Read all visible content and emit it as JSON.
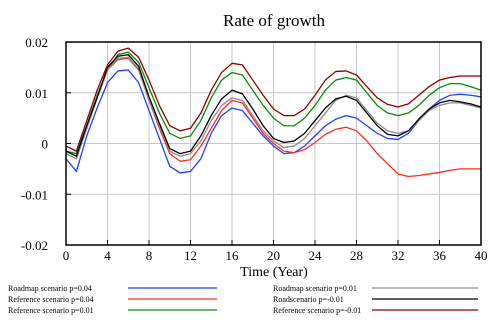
{
  "chart_data": {
    "type": "line",
    "title": "Rate of growth",
    "xlabel": "Time (Year)",
    "ylabel": "",
    "xlim": [
      0,
      40
    ],
    "ylim": [
      -0.02,
      0.02
    ],
    "x_ticks": [
      0,
      4,
      8,
      12,
      16,
      20,
      24,
      28,
      32,
      36,
      40
    ],
    "x_tick_labels": [
      "0",
      "4",
      "8",
      "12",
      "16",
      "20",
      "24",
      "28",
      "32",
      "36",
      "40"
    ],
    "y_ticks": [
      0.02,
      0.01,
      0,
      -0.01,
      -0.02
    ],
    "y_tick_labels": [
      "0.02",
      "0.01",
      "0",
      "-0.01",
      "-0.02"
    ],
    "grid": true,
    "legend_position": "bottom",
    "x": [
      0,
      1,
      2,
      3,
      4,
      5,
      6,
      7,
      8,
      9,
      10,
      11,
      12,
      13,
      14,
      15,
      16,
      17,
      18,
      19,
      20,
      21,
      22,
      23,
      24,
      25,
      26,
      27,
      28,
      29,
      30,
      31,
      32,
      33,
      34,
      35,
      36,
      37,
      38,
      39,
      40
    ],
    "series": [
      {
        "name": "Roadmap scenario p=0.04",
        "color": "#1f3fff",
        "values": [
          -0.003,
          -0.0055,
          0.0015,
          0.007,
          0.012,
          0.0143,
          0.0145,
          0.012,
          0.0065,
          0.001,
          -0.0045,
          -0.0058,
          -0.0055,
          -0.003,
          0.002,
          0.0055,
          0.007,
          0.0065,
          0.004,
          0.0015,
          -0.0005,
          -0.002,
          -0.0018,
          -0.0005,
          0.0015,
          0.0035,
          0.0048,
          0.0055,
          0.005,
          0.0035,
          0.002,
          0.001,
          0.0008,
          0.002,
          0.0045,
          0.0068,
          0.0085,
          0.0095,
          0.0097,
          0.0095,
          0.0092
        ]
      },
      {
        "name": "Reference scenario p=0.04",
        "color": "#ff2a1a",
        "values": [
          -0.002,
          -0.003,
          0.003,
          0.009,
          0.0145,
          0.0165,
          0.0168,
          0.0145,
          0.0085,
          0.003,
          -0.002,
          -0.0035,
          -0.0032,
          -0.0005,
          0.003,
          0.0065,
          0.0085,
          0.008,
          0.005,
          0.002,
          0,
          -0.0015,
          -0.0018,
          -0.0012,
          0.0002,
          0.0018,
          0.0028,
          0.0032,
          0.0025,
          0.0005,
          -0.002,
          -0.004,
          -0.006,
          -0.0065,
          -0.0063,
          -0.006,
          -0.0057,
          -0.0053,
          -0.005,
          -0.005,
          -0.005
        ]
      },
      {
        "name": "Reference scenario p=0.01",
        "color": "#0a8a0a",
        "values": [
          -0.0015,
          -0.002,
          0.0035,
          0.0095,
          0.0145,
          0.0175,
          0.018,
          0.016,
          0.011,
          0.006,
          0.002,
          0.001,
          0.0015,
          0.0045,
          0.009,
          0.0125,
          0.014,
          0.0135,
          0.0105,
          0.0075,
          0.005,
          0.0035,
          0.0035,
          0.005,
          0.0075,
          0.0105,
          0.0125,
          0.013,
          0.0125,
          0.01,
          0.0075,
          0.006,
          0.0055,
          0.006,
          0.0075,
          0.0095,
          0.011,
          0.0118,
          0.0118,
          0.0112,
          0.0105
        ]
      },
      {
        "name": "Roadmap scenario p=0.01",
        "color": "#8c8c8c",
        "values": [
          -0.002,
          -0.003,
          0.003,
          0.009,
          0.0145,
          0.0168,
          0.017,
          0.0147,
          0.0085,
          0.0035,
          -0.0015,
          -0.0025,
          -0.002,
          0.0005,
          0.0045,
          0.0075,
          0.009,
          0.0085,
          0.0055,
          0.0025,
          0.0005,
          -0.0008,
          -0.0005,
          0.001,
          0.0035,
          0.006,
          0.0085,
          0.0095,
          0.009,
          0.0065,
          0.004,
          0.0025,
          0.002,
          0.0025,
          0.0045,
          0.0065,
          0.0075,
          0.008,
          0.008,
          0.0075,
          0.007
        ]
      },
      {
        "name": "Roadscenario p=-0.01",
        "color": "#000000",
        "values": [
          -0.0015,
          -0.0025,
          0.0035,
          0.009,
          0.015,
          0.0172,
          0.0175,
          0.0152,
          0.0092,
          0.004,
          -0.001,
          -0.002,
          -0.0015,
          0.0015,
          0.0055,
          0.0088,
          0.0105,
          0.0098,
          0.0068,
          0.0035,
          0.001,
          0.0002,
          0.0005,
          0.002,
          0.0045,
          0.007,
          0.0088,
          0.0093,
          0.0085,
          0.006,
          0.0035,
          0.0018,
          0.0015,
          0.0025,
          0.0048,
          0.0068,
          0.008,
          0.0085,
          0.0082,
          0.0078,
          0.0072
        ]
      },
      {
        "name": "Reference scenario p=-0.01",
        "color": "#8b0000",
        "values": [
          -0.0005,
          -0.0015,
          0.0045,
          0.0105,
          0.0155,
          0.0182,
          0.0188,
          0.017,
          0.0125,
          0.0075,
          0.0035,
          0.0025,
          0.003,
          0.006,
          0.0105,
          0.014,
          0.0158,
          0.0155,
          0.0125,
          0.0095,
          0.0068,
          0.0055,
          0.0055,
          0.0068,
          0.0095,
          0.0125,
          0.0142,
          0.0143,
          0.0135,
          0.0112,
          0.009,
          0.0077,
          0.0072,
          0.0078,
          0.0095,
          0.0112,
          0.0125,
          0.013,
          0.0133,
          0.0133,
          0.0133
        ]
      }
    ]
  }
}
